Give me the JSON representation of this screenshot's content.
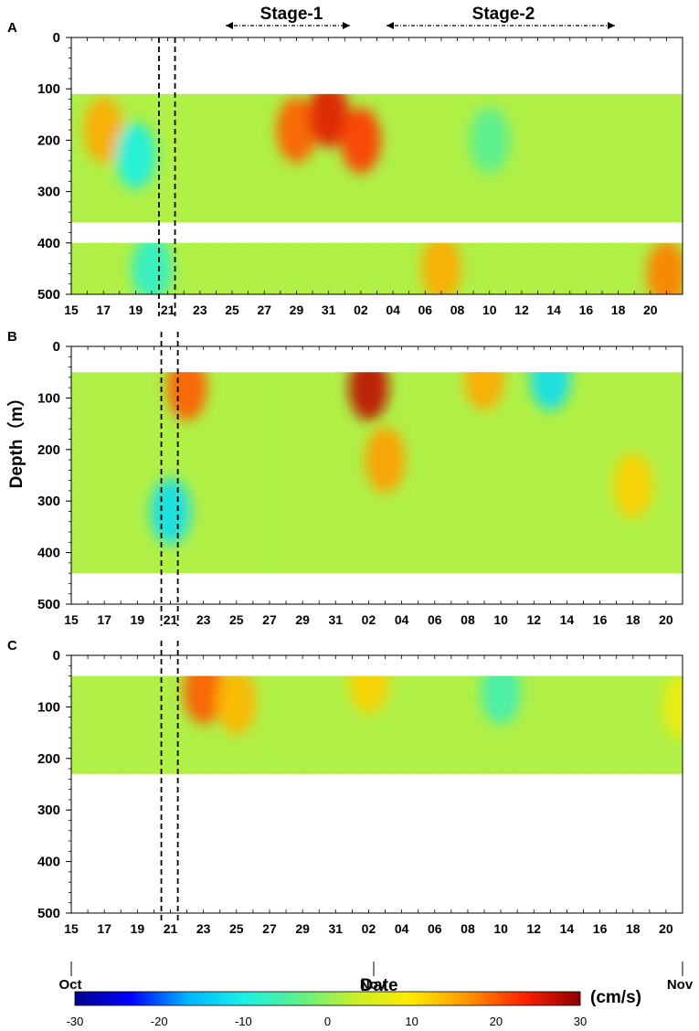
{
  "chart_data": {
    "type": "heatmap",
    "x_axis": {
      "label": "Date",
      "month_labels": {
        "start": "Oct",
        "end": "Nov"
      }
    },
    "y_axis": {
      "label": "Depth（m）",
      "ticks": [
        0,
        100,
        200,
        300,
        400,
        500
      ],
      "lim": [
        0,
        500
      ],
      "inverted": true
    },
    "colorbar": {
      "unit": "(cm/s)",
      "ticks": [
        -30,
        -20,
        -10,
        0,
        10,
        20,
        30
      ],
      "range": [
        -30,
        30
      ],
      "colormap": [
        "#00008f",
        "#0000ff",
        "#00b4ff",
        "#19f0e6",
        "#5ef08a",
        "#c8f028",
        "#ffea00",
        "#ff9400",
        "#ff2200",
        "#8b0000"
      ]
    },
    "stages": [
      {
        "label": "Stage-1",
        "start": "Oct 24",
        "end": "Oct 31"
      },
      {
        "label": "Stage-2",
        "start": "Nov 03",
        "end": "Nov 17"
      }
    ],
    "event_lines": [
      "Oct 20",
      "Oct 21"
    ],
    "panels": [
      {
        "label": "A",
        "x_tick_labels": [
          "15",
          "17",
          "19",
          "21",
          "23",
          "25",
          "27",
          "29",
          "31",
          "02",
          "04",
          "06",
          "08",
          "10",
          "12",
          "14",
          "16",
          "18",
          "20"
        ],
        "date_span": [
          "Oct 15",
          "Nov 21"
        ],
        "data_depth_ranges": [
          [
            110,
            360
          ],
          [
            400,
            500
          ]
        ],
        "features": [
          {
            "date": "Oct 17",
            "depth": 180,
            "value": 15
          },
          {
            "date": "Oct 19",
            "depth": 230,
            "value": -10
          },
          {
            "date": "Oct 20",
            "depth": 450,
            "value": -8
          },
          {
            "date": "Oct 29",
            "depth": 180,
            "value": 20
          },
          {
            "date": "Oct 31",
            "depth": 150,
            "value": 25
          },
          {
            "date": "Nov 01",
            "depth": 200,
            "value": 22
          },
          {
            "date": "Nov 06",
            "depth": 450,
            "value": 15
          },
          {
            "date": "Nov 09",
            "depth": 200,
            "value": -4
          },
          {
            "date": "Nov 20",
            "depth": 460,
            "value": 18
          }
        ]
      },
      {
        "label": "B",
        "x_tick_labels": [
          "15",
          "17",
          "19",
          "21",
          "23",
          "25",
          "27",
          "29",
          "31",
          "02",
          "04",
          "06",
          "08",
          "10",
          "12",
          "14",
          "16",
          "18",
          "20"
        ],
        "date_span": [
          "Oct 15",
          "Nov 20"
        ],
        "data_depth_ranges": [
          [
            50,
            440
          ]
        ],
        "features": [
          {
            "date": "Oct 21",
            "depth": 320,
            "value": -12
          },
          {
            "date": "Oct 22",
            "depth": 80,
            "value": 20
          },
          {
            "date": "Nov 01",
            "depth": 80,
            "value": 27
          },
          {
            "date": "Nov 02",
            "depth": 220,
            "value": 16
          },
          {
            "date": "Nov 08",
            "depth": 60,
            "value": 15
          },
          {
            "date": "Nov 12",
            "depth": 60,
            "value": -12
          },
          {
            "date": "Nov 17",
            "depth": 270,
            "value": 12
          }
        ]
      },
      {
        "label": "C",
        "x_tick_labels": [
          "15",
          "17",
          "19",
          "21",
          "23",
          "25",
          "27",
          "29",
          "31",
          "02",
          "04",
          "06",
          "08",
          "10",
          "12",
          "14",
          "16",
          "18",
          "20"
        ],
        "date_span": [
          "Oct 15",
          "Nov 20"
        ],
        "data_depth_ranges": [
          [
            40,
            230
          ]
        ],
        "features": [
          {
            "date": "Oct 23",
            "depth": 70,
            "value": 20
          },
          {
            "date": "Oct 25",
            "depth": 90,
            "value": 14
          },
          {
            "date": "Nov 01",
            "depth": 50,
            "value": 12
          },
          {
            "date": "Nov 09",
            "depth": 70,
            "value": -6
          },
          {
            "date": "Nov 20",
            "depth": 100,
            "value": 8
          }
        ]
      }
    ]
  }
}
